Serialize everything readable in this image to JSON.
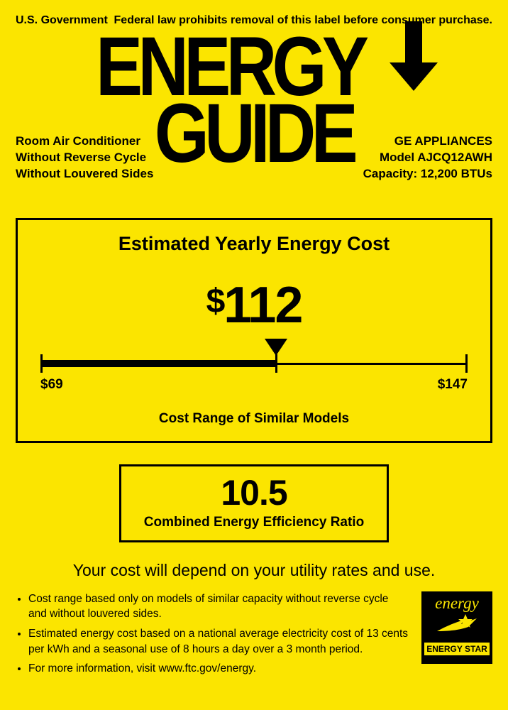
{
  "header": {
    "gov": "U.S. Government",
    "legal": "Federal law prohibits removal of this label before consumer purchase."
  },
  "logo": {
    "left": "ENERGY",
    "right": "GUIDE"
  },
  "product": {
    "type1": "Room Air Conditioner",
    "type2": "Without Reverse Cycle",
    "type3": "Without Louvered Sides",
    "brand": "GE APPLIANCES",
    "model_label": "Model",
    "model": "AJCQ12AWH",
    "capacity_label": "Capacity:",
    "capacity": "12,200 BTUs"
  },
  "cost": {
    "title": "Estimated Yearly Energy Cost",
    "currency": "$",
    "value": "112",
    "min_label": "$69",
    "max_label": "$147",
    "range_label": "Cost Range of Similar Models",
    "min": 69,
    "max": 147,
    "marker_value": 112,
    "scale_colors": {
      "line": "#000000",
      "bg": "#fbe500"
    }
  },
  "ratio": {
    "value": "10.5",
    "label": "Combined Energy Efficiency Ratio"
  },
  "depends": "Your cost will depend on your utility rates and use.",
  "bullets": [
    "Cost range based only on models of similar capacity without reverse cycle and without louvered sides.",
    "Estimated energy cost based on a national average electricity cost of 13 cents per kWh and a seasonal use of 8 hours a day over a 3 month period.",
    "For more information, visit www.ftc.gov/energy."
  ],
  "energy_star": {
    "script": "energy",
    "label": "ENERGY STAR",
    "star_color": "#fbe500",
    "bg_color": "#000000"
  },
  "colors": {
    "background": "#fbe500",
    "foreground": "#000000"
  }
}
